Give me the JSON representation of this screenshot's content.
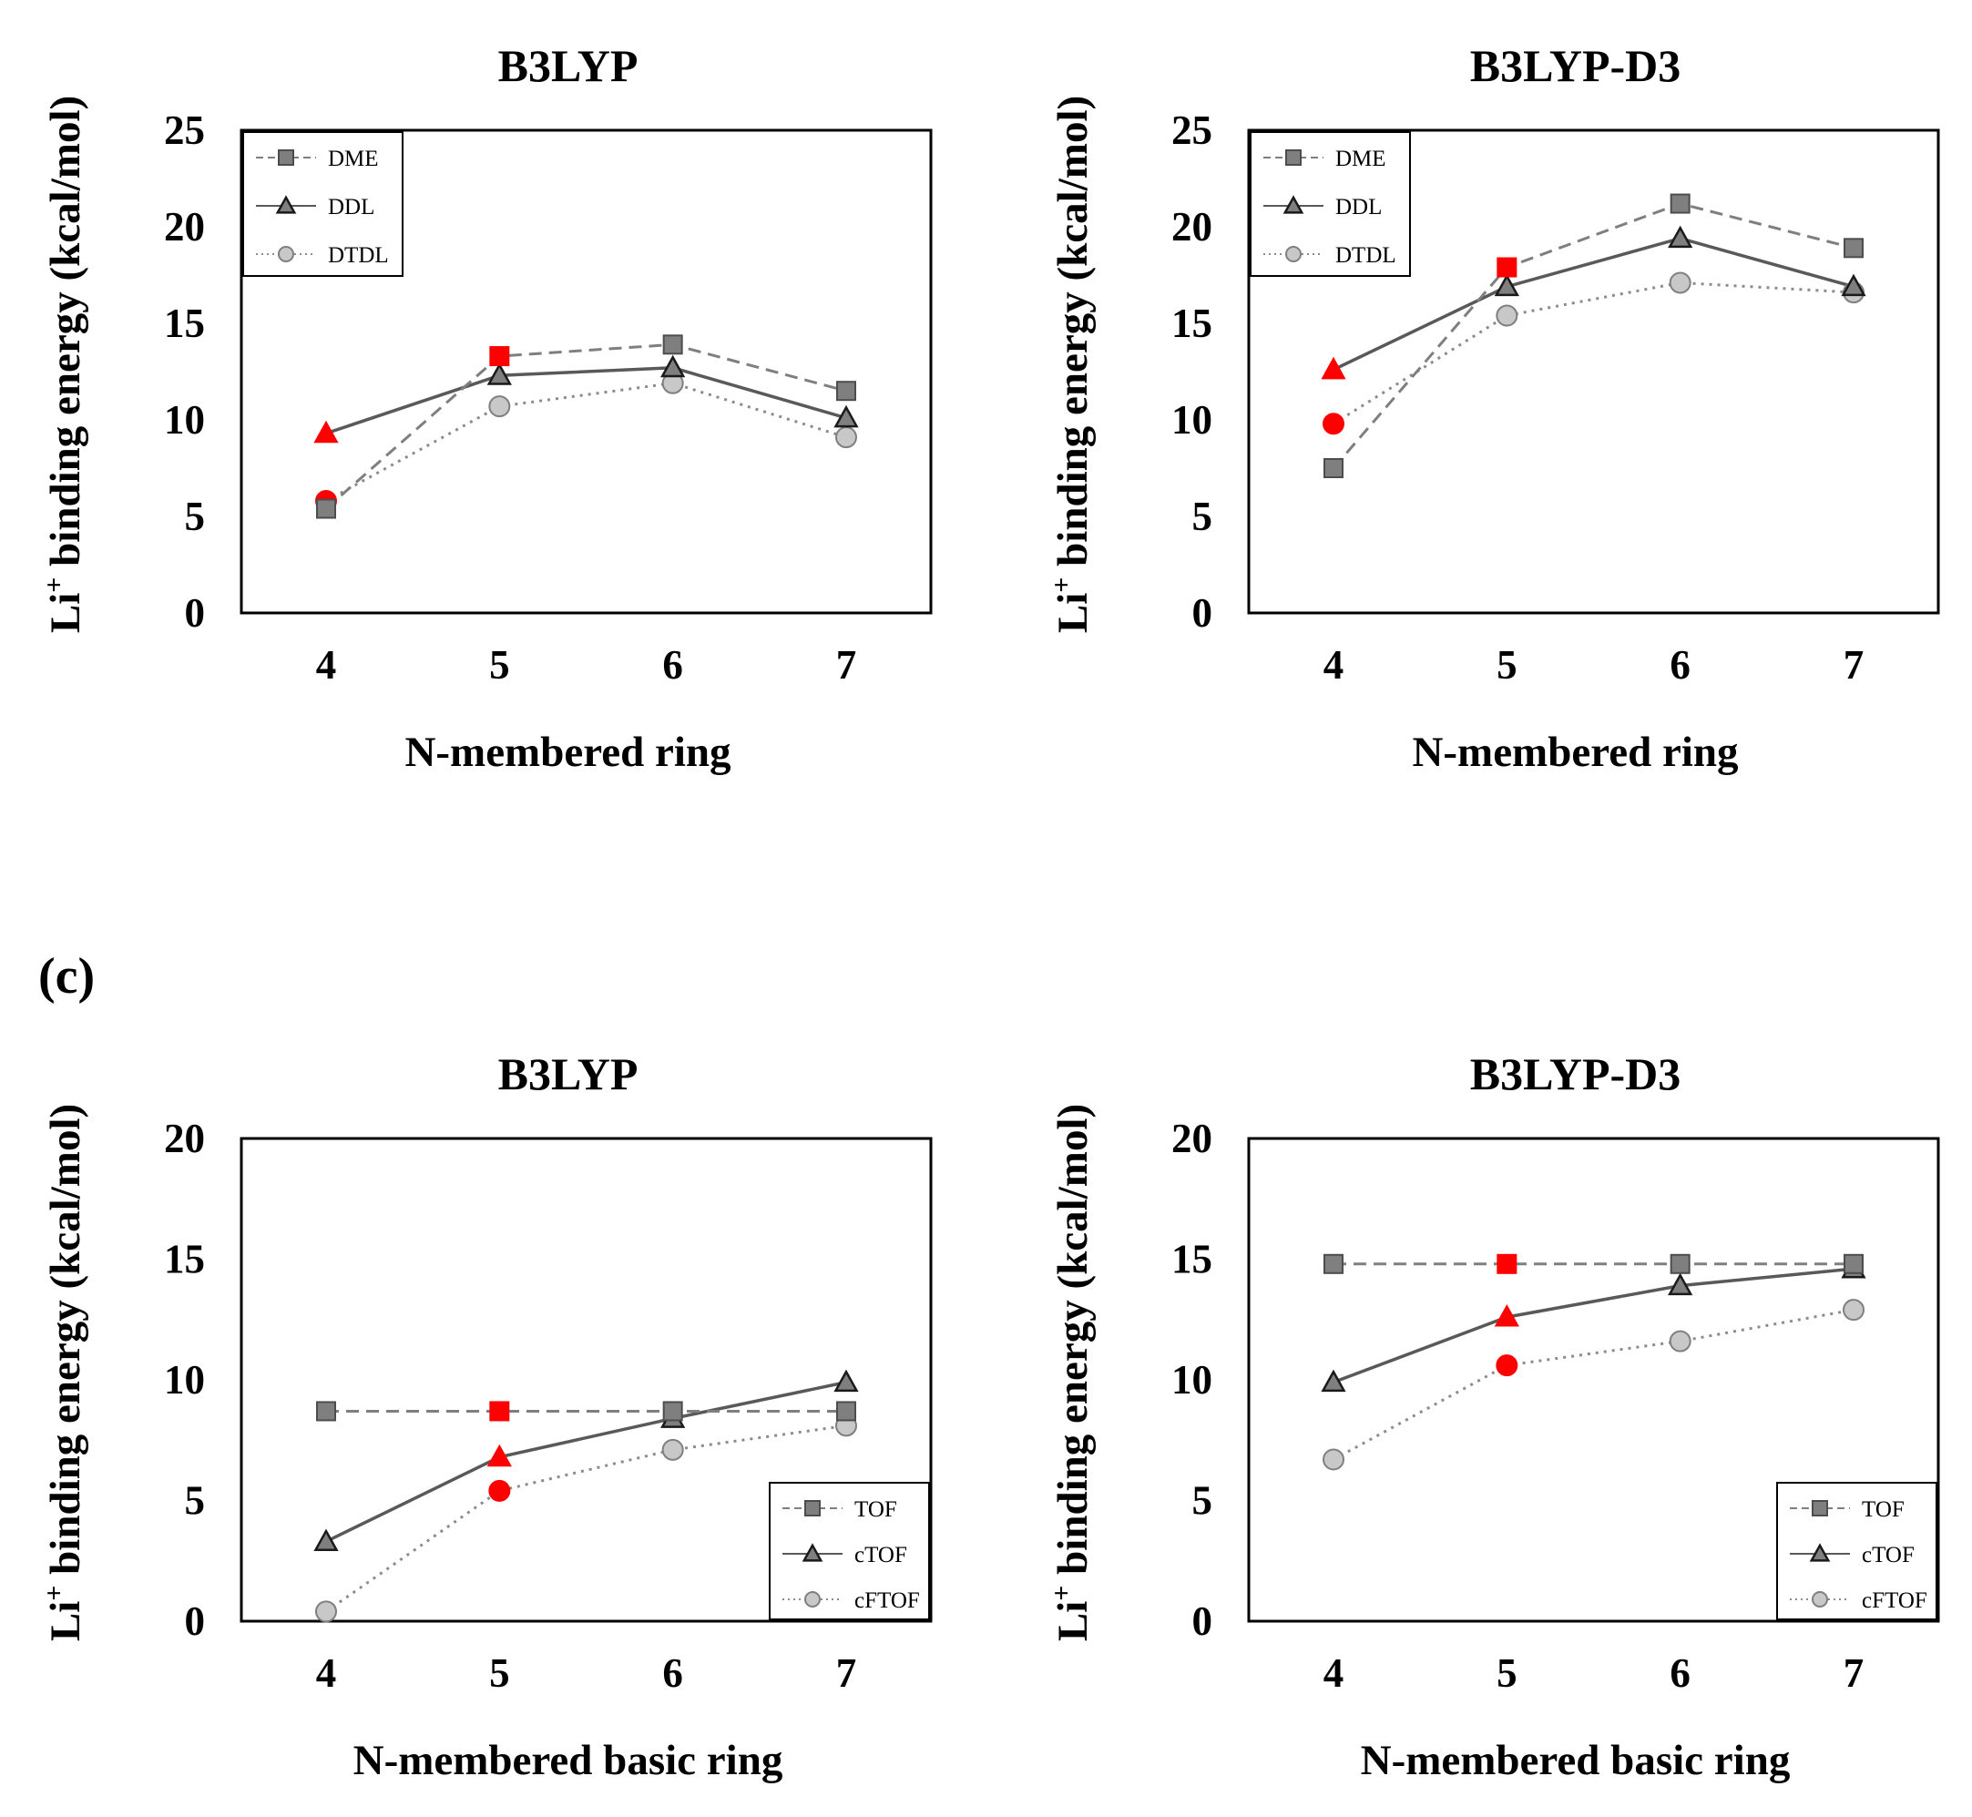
{
  "panel_label": "(c)",
  "chart_data": [
    {
      "type": "line",
      "title": "B3LYP",
      "xlabel": "N-membered ring",
      "ylabel_main": "Li",
      "ylabel_sup": "+",
      "ylabel_rest": " binding  energy (kcal/mol)",
      "categories": [
        "4",
        "5",
        "6",
        "7"
      ],
      "ylim": [
        0,
        25
      ],
      "yticks": [
        "0",
        "5",
        "10",
        "15",
        "20",
        "25"
      ],
      "legend_position": "top-left",
      "series": [
        {
          "name": "DME",
          "marker": "square",
          "dash": "dashed",
          "values": [
            5.4,
            13.3,
            13.9,
            11.5
          ],
          "highlight_index": 1
        },
        {
          "name": "DDL",
          "marker": "triangle",
          "dash": "solid",
          "values": [
            9.3,
            12.3,
            12.7,
            10.1
          ],
          "highlight_index": 0
        },
        {
          "name": "DTDL",
          "marker": "circle",
          "dash": "dotted",
          "values": [
            5.8,
            10.7,
            11.9,
            9.1
          ],
          "highlight_index": 0
        }
      ]
    },
    {
      "type": "line",
      "title": "B3LYP-D3",
      "xlabel": "N-membered ring",
      "ylabel_main": "Li",
      "ylabel_sup": "+",
      "ylabel_rest": " binding  energy (kcal/mol)",
      "categories": [
        "4",
        "5",
        "6",
        "7"
      ],
      "ylim": [
        0,
        25
      ],
      "yticks": [
        "0",
        "5",
        "10",
        "15",
        "20",
        "25"
      ],
      "legend_position": "top-left",
      "series": [
        {
          "name": "DME",
          "marker": "square",
          "dash": "dashed",
          "values": [
            7.5,
            17.9,
            21.2,
            18.9
          ],
          "highlight_index": 1
        },
        {
          "name": "DDL",
          "marker": "triangle",
          "dash": "solid",
          "values": [
            12.6,
            16.9,
            19.4,
            16.9
          ],
          "highlight_index": 0
        },
        {
          "name": "DTDL",
          "marker": "circle",
          "dash": "dotted",
          "values": [
            9.8,
            15.4,
            17.1,
            16.6
          ],
          "highlight_index": 0
        }
      ]
    },
    {
      "type": "line",
      "title": "B3LYP",
      "xlabel": "N-membered basic ring",
      "ylabel_main": "Li",
      "ylabel_sup": "+",
      "ylabel_rest": " binding  energy (kcal/mol)",
      "categories": [
        "4",
        "5",
        "6",
        "7"
      ],
      "ylim": [
        0,
        20
      ],
      "yticks": [
        "0",
        "5",
        "10",
        "15",
        "20"
      ],
      "legend_position": "bottom-right",
      "series": [
        {
          "name": "TOF",
          "marker": "square",
          "dash": "dashed",
          "values": [
            8.7,
            8.7,
            8.7,
            8.7
          ],
          "highlight_index": 1
        },
        {
          "name": "cTOF",
          "marker": "triangle",
          "dash": "solid",
          "values": [
            3.3,
            6.8,
            8.4,
            9.9
          ],
          "highlight_index": 1
        },
        {
          "name": "cFTOF",
          "marker": "circle",
          "dash": "dotted",
          "values": [
            0.4,
            5.4,
            7.1,
            8.1
          ],
          "highlight_index": 1
        }
      ]
    },
    {
      "type": "line",
      "title": "B3LYP-D3",
      "xlabel": "N-membered basic ring",
      "ylabel_main": "Li",
      "ylabel_sup": "+",
      "ylabel_rest": " binding  energy (kcal/mol)",
      "categories": [
        "4",
        "5",
        "6",
        "7"
      ],
      "ylim": [
        0,
        20
      ],
      "yticks": [
        "0",
        "5",
        "10",
        "15",
        "20"
      ],
      "legend_position": "bottom-right",
      "series": [
        {
          "name": "TOF",
          "marker": "square",
          "dash": "dashed",
          "values": [
            14.8,
            14.8,
            14.8,
            14.8
          ],
          "highlight_index": 1
        },
        {
          "name": "cTOF",
          "marker": "triangle",
          "dash": "solid",
          "values": [
            9.9,
            12.6,
            13.9,
            14.6
          ],
          "highlight_index": 1
        },
        {
          "name": "cFTOF",
          "marker": "circle",
          "dash": "dotted",
          "values": [
            6.7,
            10.6,
            11.6,
            12.9
          ],
          "highlight_index": 1
        }
      ]
    }
  ]
}
